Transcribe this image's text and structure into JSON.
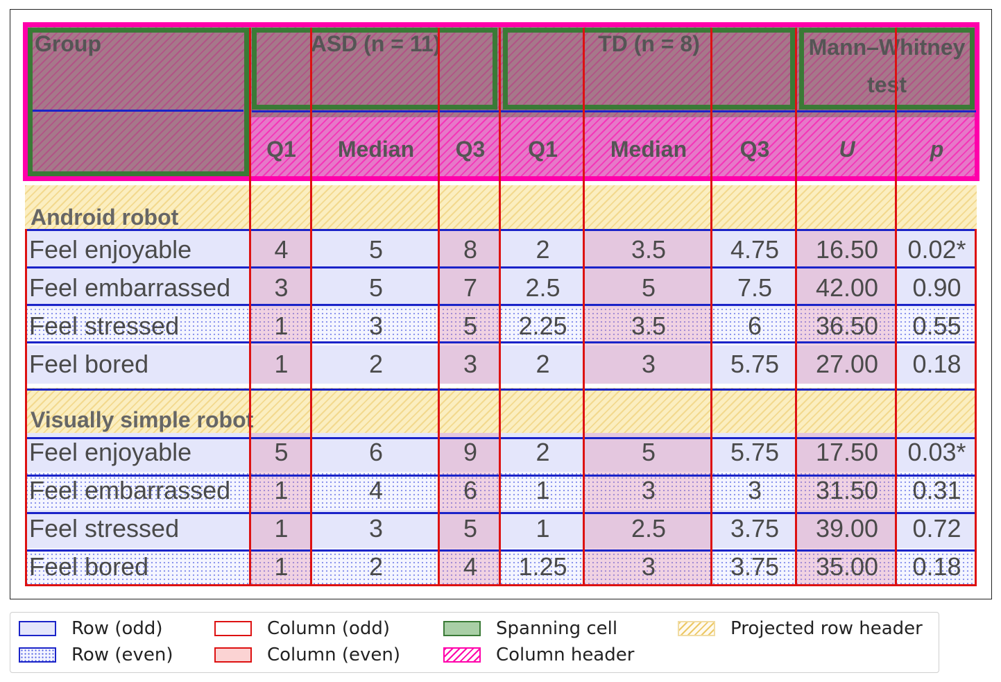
{
  "table": {
    "header": {
      "group": "Group",
      "asd": "ASD (n = 11)",
      "td": "TD (n = 8)",
      "mw": "Mann–Whitney test",
      "q1": "Q1",
      "median": "Median",
      "q3": "Q3",
      "u": "U",
      "p": "p"
    },
    "sections": [
      {
        "title": "Android robot",
        "rows": [
          {
            "label": "Feel enjoyable",
            "asd_q1": "4",
            "asd_med": "5",
            "asd_q3": "8",
            "td_q1": "2",
            "td_med": "3.5",
            "td_q3": "4.75",
            "u": "16.50",
            "p": "0.02*"
          },
          {
            "label": "Feel embarrassed",
            "asd_q1": "3",
            "asd_med": "5",
            "asd_q3": "7",
            "td_q1": "2.5",
            "td_med": "5",
            "td_q3": "7.5",
            "u": "42.00",
            "p": "0.90"
          },
          {
            "label": "Feel stressed",
            "asd_q1": "1",
            "asd_med": "3",
            "asd_q3": "5",
            "td_q1": "2.25",
            "td_med": "3.5",
            "td_q3": "6",
            "u": "36.50",
            "p": "0.55"
          },
          {
            "label": "Feel bored",
            "asd_q1": "1",
            "asd_med": "2",
            "asd_q3": "3",
            "td_q1": "2",
            "td_med": "3",
            "td_q3": "5.75",
            "u": "27.00",
            "p": "0.18"
          }
        ]
      },
      {
        "title": "Visually simple robot",
        "rows": [
          {
            "label": "Feel enjoyable",
            "asd_q1": "5",
            "asd_med": "6",
            "asd_q3": "9",
            "td_q1": "2",
            "td_med": "5",
            "td_q3": "5.75",
            "u": "17.50",
            "p": "0.03*"
          },
          {
            "label": "Feel embarrassed",
            "asd_q1": "1",
            "asd_med": "4",
            "asd_q3": "6",
            "td_q1": "1",
            "td_med": "3",
            "td_q3": "3",
            "u": "31.50",
            "p": "0.31"
          },
          {
            "label": "Feel stressed",
            "asd_q1": "1",
            "asd_med": "3",
            "asd_q3": "5",
            "td_q1": "1",
            "td_med": "2.5",
            "td_q3": "3.75",
            "u": "39.00",
            "p": "0.72"
          },
          {
            "label": "Feel bored",
            "asd_q1": "1",
            "asd_med": "2",
            "asd_q3": "4",
            "td_q1": "1.25",
            "td_med": "3",
            "td_q3": "3.75",
            "u": "35.00",
            "p": "0.18"
          }
        ]
      }
    ]
  },
  "legend": {
    "row_odd": "Row (odd)",
    "row_even": "Row (even)",
    "col_odd": "Column (odd)",
    "col_even": "Column (even)",
    "spanning": "Spanning cell",
    "col_header": "Column header",
    "projected": "Projected row header"
  },
  "colors": {
    "row_border": "#1a23c8",
    "column_border": "#dd1111",
    "spanning_border": "#3a7a36",
    "column_header_border": "#ff00aa",
    "projected_fill": "#fbeec0"
  }
}
